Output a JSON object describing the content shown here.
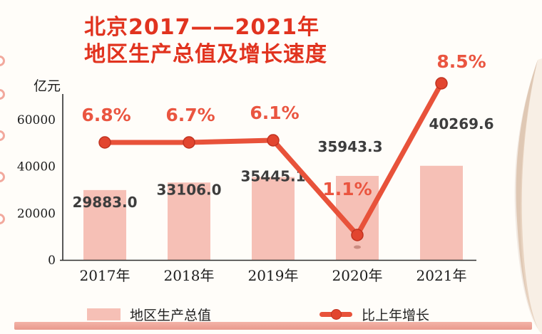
{
  "title": {
    "line1": "北京2017——2021年",
    "line2": "地区生产总值及增长速度"
  },
  "chart_data": {
    "type": "bar+line",
    "title": "北京2017——2021年地区生产总值及增长速度",
    "categories": [
      "2017年",
      "2018年",
      "2019年",
      "2020年",
      "2021年"
    ],
    "series": [
      {
        "name": "地区生产总值",
        "type": "bar",
        "unit": "亿元",
        "values": [
          29883.0,
          33106.0,
          35445.1,
          35943.3,
          40269.6
        ],
        "value_labels": [
          "29883.0",
          "33106.0",
          "35445.1",
          "35943.3",
          "40269.6"
        ]
      },
      {
        "name": "比上年增长",
        "type": "line",
        "unit": "%",
        "values": [
          6.8,
          6.7,
          6.1,
          1.1,
          8.5
        ],
        "value_labels": [
          "6.8%",
          "6.7%",
          "6.1%",
          "1.1%",
          "8.5%"
        ]
      }
    ],
    "ylabel": "亿元",
    "ylim": [
      0,
      60000
    ],
    "y_ticks": [
      0,
      20000,
      40000,
      60000
    ],
    "grid": false,
    "legend_position": "bottom"
  },
  "legend": {
    "bar_label": "地区生产总值",
    "line_label": "比上年增长"
  },
  "colors": {
    "title": "#e1331f",
    "bar": "#f6c0b6",
    "line": "#e8523a",
    "marker": "#e2452f",
    "marker_ring": "#c03320",
    "percent": "#ea5540",
    "value_text": "#3d3d3d",
    "axis_text": "#1c1c1c",
    "bottom_strip": "#efa99d"
  }
}
